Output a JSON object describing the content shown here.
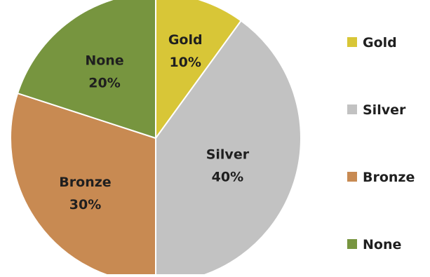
{
  "chart_data": {
    "type": "pie",
    "title": "",
    "categories": [
      "Gold",
      "Silver",
      "Bronze",
      "None"
    ],
    "values": [
      10,
      40,
      30,
      20
    ],
    "value_labels": [
      "10%",
      "40%",
      "30%",
      "20%"
    ],
    "colors": [
      "#d8c637",
      "#c2c2c2",
      "#c88a52",
      "#77953f"
    ],
    "start_angle_deg": 0,
    "direction": "clockwise",
    "legend": {
      "position": "right",
      "entries": [
        "Gold",
        "Silver",
        "Bronze",
        "None"
      ]
    }
  }
}
